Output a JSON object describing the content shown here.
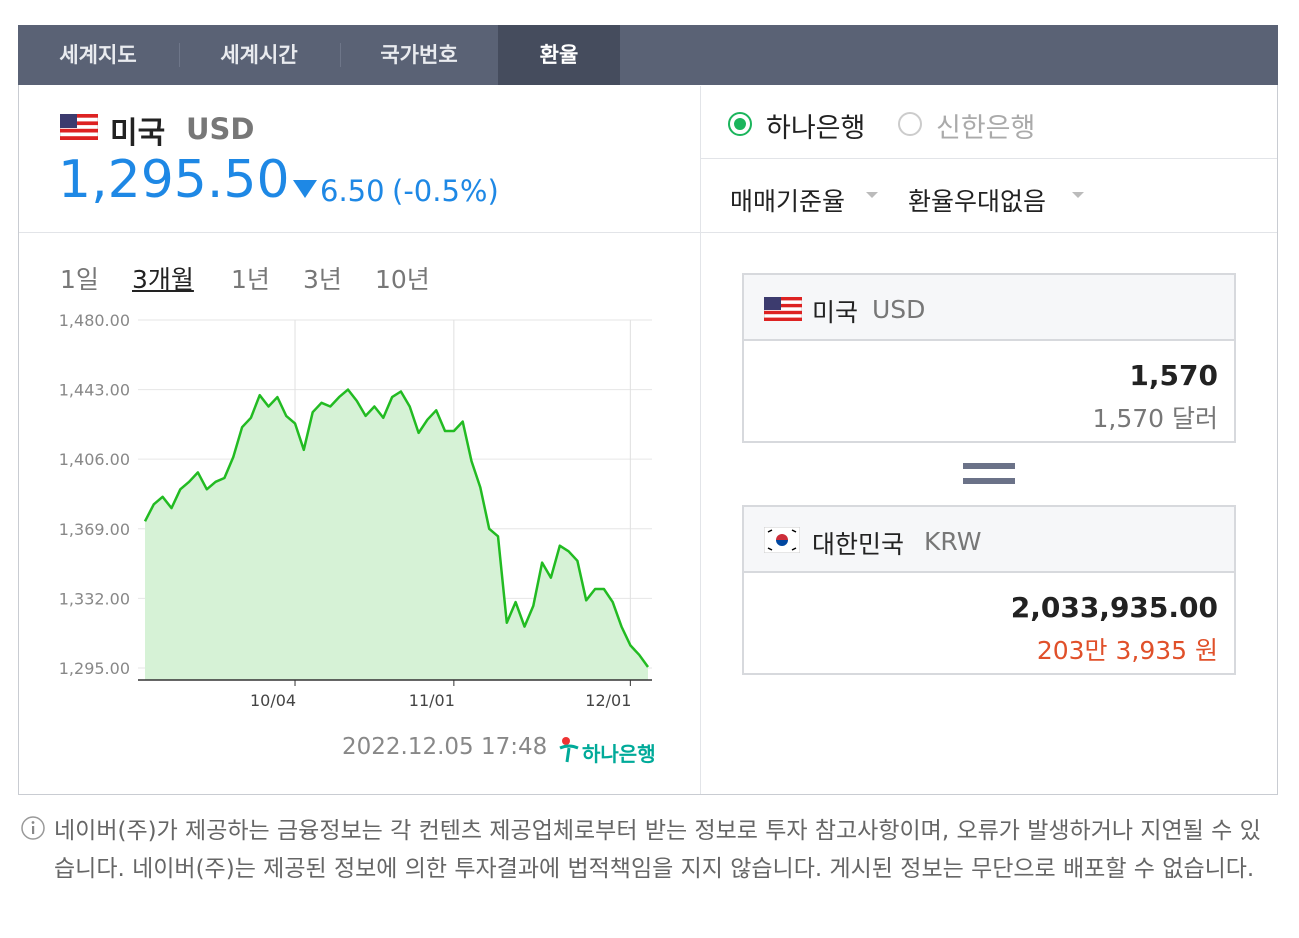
{
  "tabs": [
    "세계지도",
    "세계시간",
    "국가번호",
    "환율"
  ],
  "currency": {
    "country": "미국",
    "code": "USD",
    "rate": "1,295.50",
    "change": "6.50",
    "change_pct": "(-0.5%)"
  },
  "banks": [
    "하나은행",
    "신한은행"
  ],
  "options": [
    "매매기준율",
    "환율우대없음"
  ],
  "periods": [
    "1일",
    "3개월",
    "1년",
    "3년",
    "10년"
  ],
  "chart": {
    "type": "line",
    "color": "#22bb22",
    "categories": [
      null,
      null,
      null,
      null,
      null,
      null,
      null,
      null,
      null,
      null,
      null,
      null,
      null,
      null,
      null,
      null,
      null,
      "10/04",
      null,
      null,
      null,
      null,
      null,
      null,
      null,
      null,
      null,
      null,
      null,
      null,
      null,
      null,
      null,
      null,
      null,
      "11/01",
      null,
      null,
      null,
      null,
      null,
      null,
      null,
      null,
      null,
      null,
      null,
      null,
      null,
      null,
      null,
      null,
      null,
      null,
      null,
      "12/01",
      null,
      null
    ],
    "values": [
      1373,
      1382,
      1386,
      1380,
      1390,
      1394,
      1399,
      1390,
      1394,
      1396,
      1407,
      1423,
      1428,
      1440,
      1434,
      1439,
      1429,
      1425,
      1411,
      1431,
      1436,
      1434,
      1439,
      1443,
      1437,
      1429,
      1434,
      1428,
      1439,
      1442,
      1434,
      1420,
      1427,
      1432,
      1421,
      1421,
      1426,
      1405,
      1391,
      1369,
      1365,
      1319,
      1330,
      1317,
      1328,
      1351,
      1343,
      1360,
      1357,
      1352,
      1331,
      1337,
      1337,
      1330,
      1317,
      1307,
      1302,
      1295.5
    ],
    "ylim": [
      1288.6,
      1480
    ],
    "yticks": [
      {
        "value": 1480,
        "label": "1,480.00"
      },
      {
        "value": 1443,
        "label": "1,443.00"
      },
      {
        "value": 1406,
        "label": "1,406.00"
      },
      {
        "value": 1369,
        "label": "1,369.00"
      },
      {
        "value": 1332,
        "label": "1,332.00"
      },
      {
        "value": 1295,
        "label": "1,295.00"
      }
    ],
    "grid": true
  },
  "timestamp": "2022.12.05 17:48",
  "source_logo": "하나은행",
  "converter": {
    "from": {
      "country": "미국",
      "code": "USD",
      "amount": "1,570",
      "amount_text": "1,570 달러"
    },
    "to": {
      "country": "대한민국",
      "code": "KRW",
      "amount": "2,033,935.00",
      "amount_text": "203만 3,935 원"
    }
  },
  "notice": "네이버(주)가 제공하는 금융정보는 각 컨텐츠 제공업체로부터 받는 정보로 투자 참고사항이며, 오류가 발생하거나 지연될 수 있습니다. 네이버(주)는 제공된 정보에 의한 투자결과에 법적책임을 지지 않습니다. 게시된 정보는 무단으로 배포할 수 없습니다."
}
